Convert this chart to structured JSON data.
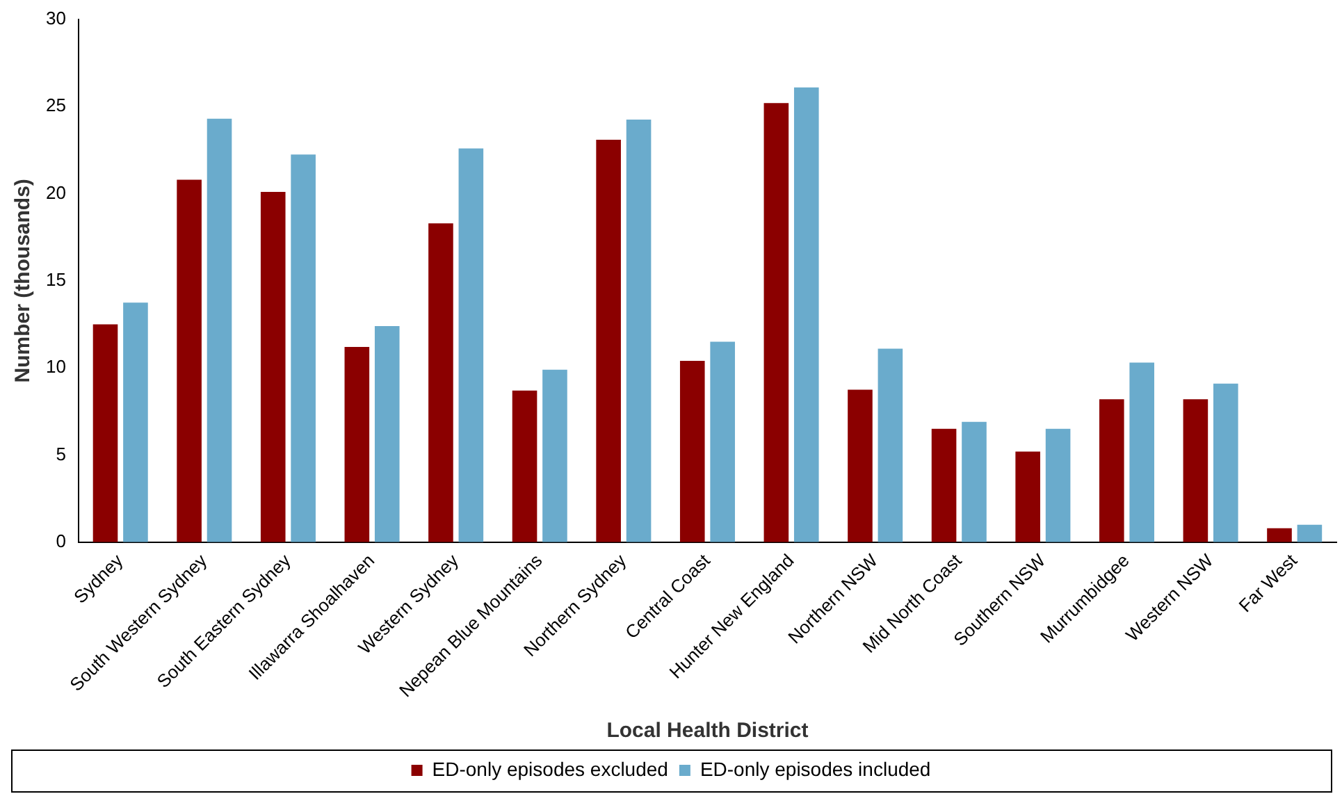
{
  "chart_data": {
    "type": "bar",
    "xlabel": "Local Health District",
    "ylabel": "Number (thousands)",
    "categories": [
      "Sydney",
      "South Western Sydney",
      "South Eastern Sydney",
      "Illawarra Shoalhaven",
      "Western Sydney",
      "Nepean Blue Mountains",
      "Northern Sydney",
      "Central Coast",
      "Hunter New England",
      "Northern NSW",
      "Mid North Coast",
      "Southern NSW",
      "Murrumbidgee",
      "Western NSW",
      "Far West"
    ],
    "series": [
      {
        "name": "ED-only episodes excluded",
        "color": "#8b0000",
        "values": [
          12.5,
          20.8,
          20.1,
          11.2,
          18.3,
          8.7,
          23.1,
          10.4,
          25.2,
          8.75,
          6.5,
          5.2,
          8.2,
          8.2,
          0.8
        ]
      },
      {
        "name": "ED-only episodes included",
        "color": "#6aabcc",
        "values": [
          13.75,
          24.3,
          22.25,
          12.4,
          22.6,
          9.9,
          24.25,
          11.5,
          26.1,
          11.1,
          6.9,
          6.5,
          10.3,
          9.1,
          1.0
        ]
      }
    ],
    "ylim": [
      0,
      30
    ],
    "yticks": [
      0,
      5,
      10,
      15,
      20,
      25,
      30
    ],
    "grid": false,
    "legend": "bottom"
  }
}
